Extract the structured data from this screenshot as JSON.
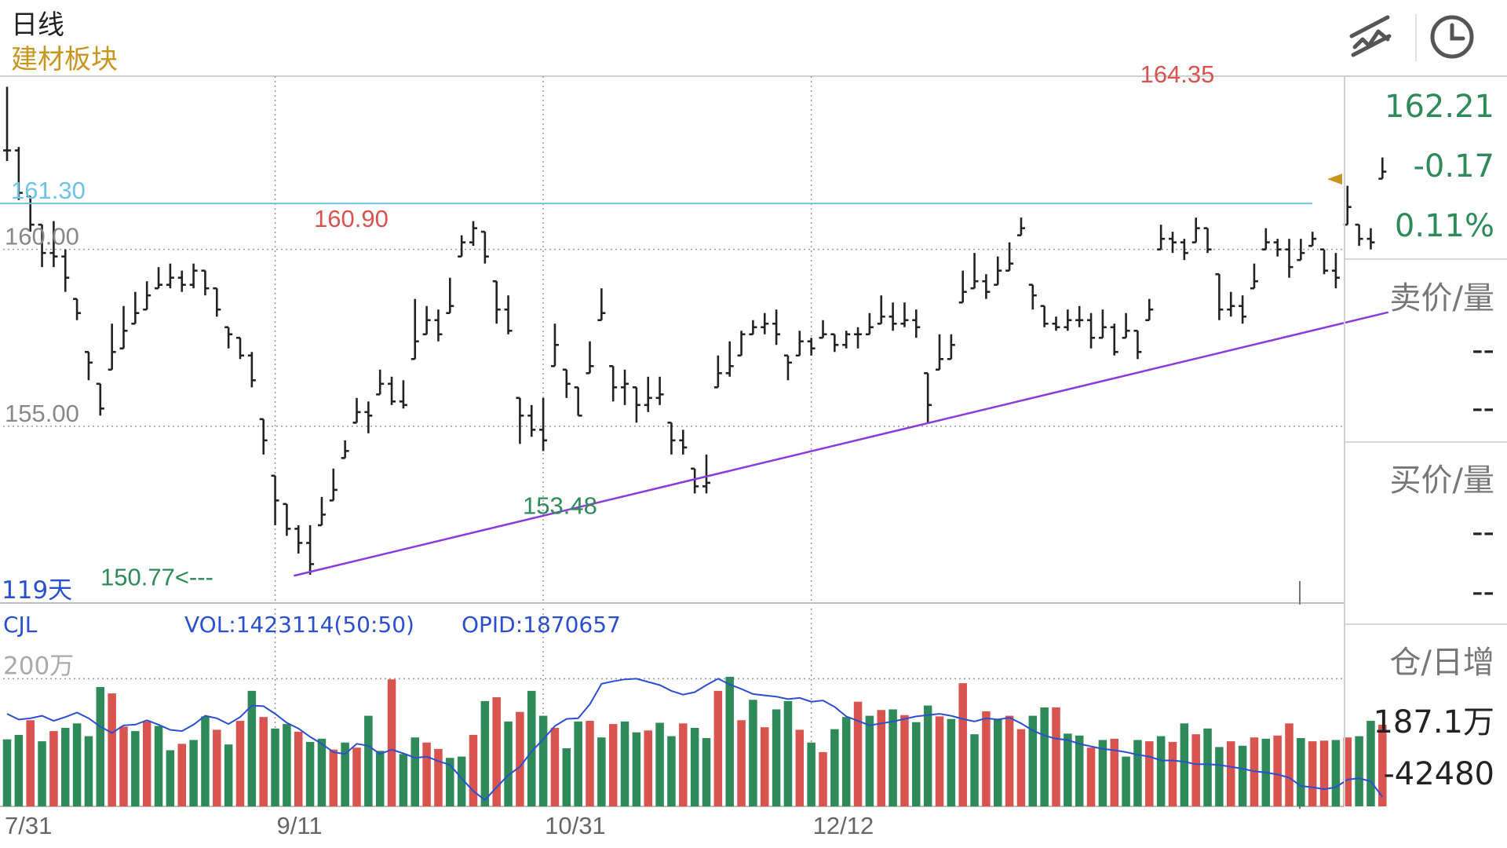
{
  "header": {
    "title": "日线",
    "subtitle": "建材板块"
  },
  "toolbar": {
    "draw_icon": "drawing-tool-icon",
    "clock_icon": "clock-icon"
  },
  "panel": {
    "price": "162.21",
    "change": "-0.17",
    "change_pct": "0.11%",
    "ask_label": "卖价/量",
    "ask_price": "--",
    "ask_qty": "--",
    "bid_label": "买价/量",
    "bid_price": "--",
    "bid_qty": "--",
    "oi_label": "仓/日增",
    "oi_value": "187.1万",
    "oi_change": "-42480"
  },
  "colors": {
    "up": "#d9534f",
    "down": "#2e8a58",
    "bar_line": "#222222",
    "support_line": "#8a3be0",
    "resistance_line": "#6ec3e6",
    "opid_line": "#2b4fd1",
    "accent": "#c8961e"
  },
  "chart_data": [
    {
      "type": "ohlc",
      "period": "日线",
      "x_ticks": [
        "7/31",
        "9/11",
        "10/31",
        "12/12"
      ],
      "y_ticks": [
        "160.00",
        "155.00"
      ],
      "ylim": [
        150.0,
        164.9
      ],
      "bar_count": 119,
      "day_count_label": "119天",
      "series": [
        {
          "name": "price",
          "close": [
            162.8,
            161.6,
            160.7,
            159.9,
            159.8,
            159.2,
            158.2,
            156.8,
            155.5,
            157.1,
            157.7,
            158.2,
            158.7,
            159.0,
            159.2,
            159.0,
            159.4,
            158.9,
            158.3,
            157.6,
            157.0,
            156.3,
            154.6,
            152.9,
            152.1,
            151.7,
            151.1,
            152.5,
            153.2,
            154.3,
            155.4,
            155.3,
            156.2,
            155.7,
            155.6,
            157.4,
            158.0,
            157.6,
            158.4,
            160.2,
            160.6,
            159.8,
            158.3,
            157.7,
            155.3,
            154.9,
            154.6,
            157.3,
            156.2,
            155.3,
            156.7,
            158.2,
            156.1,
            156.2,
            155.6,
            155.8,
            155.9,
            154.6,
            154.4,
            153.3,
            153.4,
            156.5,
            156.7,
            157.6,
            157.8,
            157.9,
            157.6,
            156.8,
            157.4,
            157.2,
            157.6,
            157.3,
            157.6,
            157.6,
            157.8,
            158.1,
            157.9,
            158.0,
            157.8,
            155.6,
            156.9,
            157.3,
            158.8,
            159.1,
            158.8,
            159.4,
            159.6,
            160.6,
            158.7,
            157.9,
            157.8,
            158.0,
            158.0,
            157.5,
            157.8,
            157.1,
            157.7,
            157.1,
            158.3,
            160.3,
            160.2,
            159.9,
            160.6,
            160.0,
            158.3,
            158.4,
            158.1,
            159.1,
            160.2,
            160.0,
            159.5,
            159.9,
            160.3,
            159.4,
            159.2,
            161.2,
            160.3,
            160.2,
            162.2
          ],
          "high": [
            164.6,
            162.9,
            161.5,
            160.7,
            160.8,
            160.0,
            158.6,
            157.1,
            156.2,
            157.9,
            158.4,
            158.8,
            159.1,
            159.5,
            159.6,
            159.4,
            159.6,
            159.4,
            158.9,
            157.8,
            157.5,
            157.1,
            155.2,
            153.6,
            152.8,
            152.2,
            152.2,
            153.0,
            153.8,
            154.6,
            155.8,
            155.7,
            156.6,
            156.4,
            156.3,
            158.6,
            158.4,
            158.3,
            159.2,
            160.4,
            160.8,
            160.5,
            159.1,
            158.7,
            155.8,
            155.6,
            155.8,
            157.9,
            156.6,
            156.1,
            157.4,
            158.9,
            156.7,
            156.6,
            156.1,
            156.4,
            156.4,
            155.1,
            154.9,
            153.8,
            154.2,
            157.0,
            157.4,
            157.7,
            158.0,
            158.2,
            158.3,
            157.0,
            157.7,
            157.5,
            158.0,
            157.6,
            157.7,
            157.8,
            158.2,
            158.7,
            158.5,
            158.5,
            158.3,
            156.5,
            157.6,
            157.6,
            159.4,
            159.9,
            159.3,
            159.8,
            160.2,
            160.9,
            159.0,
            158.4,
            158.1,
            158.3,
            158.4,
            158.2,
            158.3,
            157.9,
            158.2,
            157.7,
            158.6,
            160.7,
            160.5,
            160.3,
            160.9,
            160.6,
            159.3,
            158.8,
            158.7,
            159.6,
            160.6,
            160.3,
            160.3,
            160.3,
            160.5,
            160.0,
            159.9,
            161.8,
            160.7,
            160.6,
            162.6
          ],
          "low": [
            162.5,
            161.4,
            160.5,
            159.5,
            159.5,
            158.8,
            158.0,
            156.3,
            155.3,
            156.6,
            157.2,
            157.9,
            158.3,
            158.9,
            158.9,
            158.8,
            158.9,
            158.7,
            158.1,
            157.2,
            156.9,
            156.1,
            154.2,
            152.2,
            151.9,
            151.4,
            150.8,
            152.2,
            152.9,
            154.1,
            155.1,
            154.8,
            155.9,
            155.6,
            155.5,
            156.9,
            157.6,
            157.4,
            158.2,
            159.8,
            160.1,
            159.6,
            157.9,
            157.6,
            154.5,
            154.7,
            154.3,
            156.7,
            155.8,
            155.3,
            156.5,
            158.0,
            155.7,
            155.6,
            155.1,
            155.4,
            155.6,
            154.2,
            154.2,
            153.1,
            153.1,
            156.1,
            156.4,
            157.0,
            157.6,
            157.6,
            157.3,
            156.3,
            157.0,
            157.0,
            157.5,
            157.1,
            157.2,
            157.2,
            157.6,
            157.9,
            157.7,
            157.8,
            157.5,
            155.1,
            156.6,
            156.9,
            158.5,
            158.9,
            158.6,
            159.0,
            159.4,
            160.4,
            158.3,
            157.8,
            157.7,
            157.7,
            157.8,
            157.2,
            157.5,
            157.0,
            157.5,
            156.9,
            158.0,
            160.0,
            159.9,
            159.7,
            160.2,
            159.9,
            158.0,
            158.1,
            157.9,
            158.9,
            160.0,
            159.8,
            159.2,
            159.7,
            160.1,
            159.3,
            158.9,
            160.7,
            160.1,
            160.0,
            162.0
          ]
        }
      ],
      "annotations": [
        {
          "label": "164.35",
          "value": 164.35,
          "color": "up"
        },
        {
          "label": "161.30",
          "value": 161.3,
          "color": "resistance"
        },
        {
          "label": "160.90",
          "value": 160.9,
          "color": "up"
        },
        {
          "label": "153.48",
          "value": 153.48,
          "color": "down"
        },
        {
          "label": "150.77<---",
          "value": 150.77,
          "color": "down"
        }
      ]
    },
    {
      "type": "bar",
      "indicator": "CJL",
      "vol_label": "VOL:1423114(50:50)",
      "opid_label": "OPID:1870657",
      "y_ticks": [
        "200万"
      ],
      "ylim": [
        0,
        3100000
      ],
      "values": [
        1050000,
        1120000,
        1350000,
        1020000,
        1180000,
        1230000,
        1300000,
        1100000,
        1870000,
        1770000,
        1250000,
        1180000,
        1330000,
        1260000,
        880000,
        980000,
        1040000,
        1410000,
        1200000,
        970000,
        1340000,
        1810000,
        1400000,
        1220000,
        1290000,
        1170000,
        1010000,
        1060000,
        890000,
        1000000,
        920000,
        1420000,
        870000,
        1990000,
        820000,
        1080000,
        1000000,
        900000,
        760000,
        780000,
        1120000,
        1650000,
        1710000,
        1330000,
        1480000,
        1810000,
        1420000,
        1230000,
        910000,
        1330000,
        1340000,
        1080000,
        1290000,
        1330000,
        1160000,
        1190000,
        1310000,
        1100000,
        1300000,
        1230000,
        1070000,
        1810000,
        2030000,
        1350000,
        1670000,
        1240000,
        1520000,
        1650000,
        1200000,
        1000000,
        850000,
        1210000,
        1400000,
        1640000,
        1420000,
        1510000,
        1520000,
        1430000,
        1320000,
        1580000,
        1410000,
        1370000,
        1930000,
        1130000,
        1490000,
        1370000,
        1420000,
        1210000,
        1420000,
        1550000,
        1550000,
        1140000,
        1110000,
        920000,
        1040000,
        1060000,
        780000,
        1040000,
        1020000,
        1100000,
        1010000,
        1300000,
        1130000,
        1220000,
        930000,
        1020000,
        950000,
        1080000,
        1060000,
        1110000,
        1300000,
        1070000,
        1020000,
        1030000,
        1040000,
        1080000,
        1100000,
        1340000,
        1280000
      ],
      "up": [
        false,
        false,
        true,
        false,
        true,
        false,
        false,
        false,
        false,
        true,
        true,
        false,
        true,
        false,
        false,
        true,
        false,
        false,
        true,
        false,
        true,
        false,
        true,
        false,
        false,
        true,
        false,
        false,
        true,
        false,
        true,
        false,
        false,
        true,
        false,
        false,
        true,
        true,
        false,
        false,
        true,
        false,
        true,
        false,
        true,
        false,
        false,
        true,
        false,
        false,
        true,
        false,
        true,
        false,
        false,
        true,
        false,
        false,
        true,
        false,
        false,
        true,
        false,
        true,
        false,
        true,
        false,
        false,
        true,
        false,
        true,
        false,
        false,
        true,
        false,
        true,
        false,
        true,
        false,
        false,
        true,
        false,
        true,
        false,
        true,
        false,
        true,
        true,
        false,
        false,
        true,
        false,
        false,
        true,
        false,
        true,
        false,
        false,
        true,
        false,
        true,
        false,
        true,
        false,
        false,
        true,
        false,
        true,
        false,
        true,
        true,
        false,
        true,
        true,
        false,
        true,
        false,
        false,
        true
      ],
      "opid_line": [
        1450000,
        1360000,
        1380000,
        1420000,
        1340000,
        1400000,
        1470000,
        1380000,
        1250000,
        1150000,
        1270000,
        1280000,
        1350000,
        1280000,
        1200000,
        1180000,
        1280000,
        1420000,
        1380000,
        1290000,
        1400000,
        1580000,
        1570000,
        1450000,
        1310000,
        1220000,
        1090000,
        980000,
        850000,
        820000,
        980000,
        950000,
        820000,
        890000,
        830000,
        760000,
        780000,
        710000,
        650000,
        440000,
        240000,
        100000,
        300000,
        490000,
        620000,
        860000,
        1050000,
        1260000,
        1370000,
        1380000,
        1600000,
        1920000,
        1960000,
        1990000,
        2000000,
        1950000,
        1900000,
        1810000,
        1750000,
        1790000,
        1900000,
        2000000,
        1910000,
        1840000,
        1760000,
        1740000,
        1720000,
        1680000,
        1700000,
        1640000,
        1660000,
        1560000,
        1410000,
        1340000,
        1270000,
        1300000,
        1330000,
        1370000,
        1410000,
        1430000,
        1450000,
        1420000,
        1370000,
        1330000,
        1380000,
        1360000,
        1390000,
        1300000,
        1190000,
        1110000,
        1060000,
        1040000,
        980000,
        940000,
        900000,
        880000,
        850000,
        810000,
        780000,
        720000,
        720000,
        700000,
        660000,
        660000,
        650000,
        620000,
        590000,
        550000,
        530000,
        500000,
        450000,
        320000,
        300000,
        270000,
        300000,
        420000,
        440000,
        390000,
        150000
      ]
    }
  ]
}
